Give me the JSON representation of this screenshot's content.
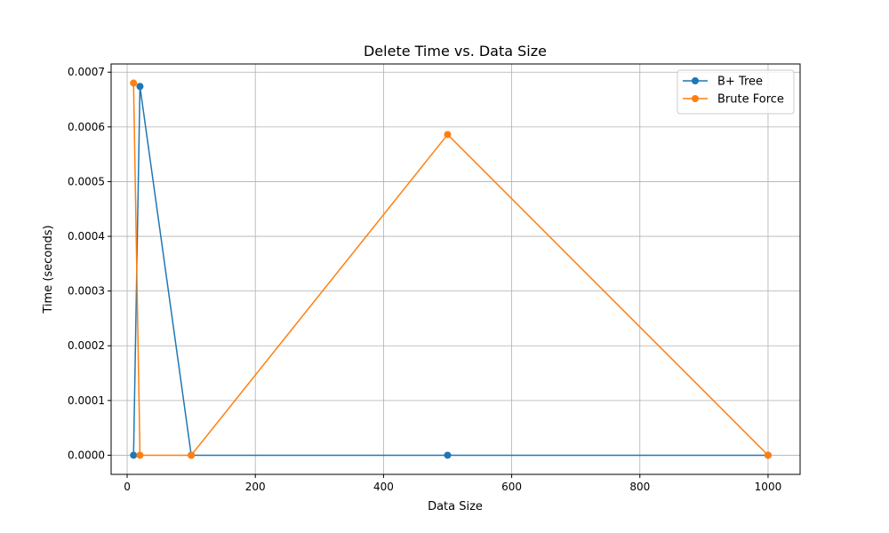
{
  "chart_data": {
    "type": "line",
    "title": "Delete Time vs. Data Size",
    "xlabel": "Data Size",
    "ylabel": "Time (seconds)",
    "xlim": [
      -25,
      1050
    ],
    "ylim": [
      -3.5e-05,
      0.000715
    ],
    "xticks": [
      0,
      200,
      400,
      600,
      800,
      1000
    ],
    "xtick_labels": [
      "0",
      "200",
      "400",
      "600",
      "800",
      "1000"
    ],
    "yticks": [
      0.0,
      0.0001,
      0.0002,
      0.0003,
      0.0004,
      0.0005,
      0.0006,
      0.0007
    ],
    "ytick_labels": [
      "0.0000",
      "0.0001",
      "0.0002",
      "0.0003",
      "0.0004",
      "0.0005",
      "0.0006",
      "0.0007"
    ],
    "grid": true,
    "legend_position": "top-right",
    "series": [
      {
        "name": "B+ Tree",
        "color": "#1f77b4",
        "marker": "circle",
        "x": [
          10,
          20,
          100,
          500,
          1000
        ],
        "y": [
          0.0,
          0.000674,
          0.0,
          0.0,
          0.0
        ]
      },
      {
        "name": "Brute Force",
        "color": "#ff7f0e",
        "marker": "circle",
        "x": [
          10,
          20,
          100,
          500,
          1000
        ],
        "y": [
          0.00068,
          0.0,
          0.0,
          0.000586,
          0.0
        ]
      }
    ]
  }
}
